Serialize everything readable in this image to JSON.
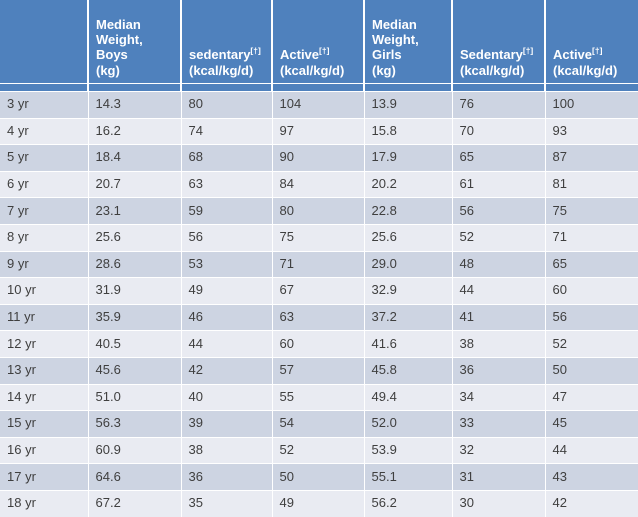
{
  "theme": {
    "header_bg": "#4F81BD",
    "row_band_dark": "#CDD4E2",
    "row_band_light": "#E9EBF2",
    "cell_border": "#FFFFFF",
    "header_text": "#FFFFFF",
    "body_text": "#3F3F3F"
  },
  "table": {
    "columns": [
      {
        "title": "",
        "sup": "",
        "unit": ""
      },
      {
        "title": "Median\nWeight, Boys",
        "sup": "",
        "unit": "(kg)"
      },
      {
        "title": "sedentary",
        "sup": "[†]",
        "unit": "(kcal/kg/d)"
      },
      {
        "title": "Active",
        "sup": "[†]",
        "unit": "(kcal/kg/d)"
      },
      {
        "title": "Median\nWeight, Girls",
        "sup": "",
        "unit": "(kg)"
      },
      {
        "title": "Sedentary",
        "sup": "[†]",
        "unit": "(kcal/kg/d)"
      },
      {
        "title": "Active",
        "sup": "[†]",
        "unit": "(kcal/kg/d)"
      }
    ],
    "rows": [
      {
        "age": "3 yr",
        "boys_weight": "14.3",
        "boys_sedentary": "80",
        "boys_active": "104",
        "girls_weight": "13.9",
        "girls_sedentary": "76",
        "girls_active": "100"
      },
      {
        "age": "4 yr",
        "boys_weight": "16.2",
        "boys_sedentary": "74",
        "boys_active": "97",
        "girls_weight": "15.8",
        "girls_sedentary": "70",
        "girls_active": "93"
      },
      {
        "age": "5 yr",
        "boys_weight": "18.4",
        "boys_sedentary": "68",
        "boys_active": "90",
        "girls_weight": "17.9",
        "girls_sedentary": "65",
        "girls_active": "87"
      },
      {
        "age": "6 yr",
        "boys_weight": "20.7",
        "boys_sedentary": "63",
        "boys_active": "84",
        "girls_weight": "20.2",
        "girls_sedentary": "61",
        "girls_active": "81"
      },
      {
        "age": "7 yr",
        "boys_weight": "23.1",
        "boys_sedentary": "59",
        "boys_active": "80",
        "girls_weight": "22.8",
        "girls_sedentary": "56",
        "girls_active": "75"
      },
      {
        "age": "8 yr",
        "boys_weight": "25.6",
        "boys_sedentary": "56",
        "boys_active": "75",
        "girls_weight": "25.6",
        "girls_sedentary": "52",
        "girls_active": "71"
      },
      {
        "age": "9 yr",
        "boys_weight": "28.6",
        "boys_sedentary": "53",
        "boys_active": "71",
        "girls_weight": "29.0",
        "girls_sedentary": "48",
        "girls_active": "65"
      },
      {
        "age": "10 yr",
        "boys_weight": "31.9",
        "boys_sedentary": "49",
        "boys_active": "67",
        "girls_weight": "32.9",
        "girls_sedentary": "44",
        "girls_active": "60"
      },
      {
        "age": "11 yr",
        "boys_weight": "35.9",
        "boys_sedentary": "46",
        "boys_active": "63",
        "girls_weight": "37.2",
        "girls_sedentary": "41",
        "girls_active": "56"
      },
      {
        "age": "12 yr",
        "boys_weight": "40.5",
        "boys_sedentary": "44",
        "boys_active": "60",
        "girls_weight": "41.6",
        "girls_sedentary": "38",
        "girls_active": "52"
      },
      {
        "age": "13 yr",
        "boys_weight": "45.6",
        "boys_sedentary": "42",
        "boys_active": "57",
        "girls_weight": "45.8",
        "girls_sedentary": "36",
        "girls_active": "50"
      },
      {
        "age": "14 yr",
        "boys_weight": "51.0",
        "boys_sedentary": "40",
        "boys_active": "55",
        "girls_weight": "49.4",
        "girls_sedentary": "34",
        "girls_active": "47"
      },
      {
        "age": "15 yr",
        "boys_weight": "56.3",
        "boys_sedentary": "39",
        "boys_active": "54",
        "girls_weight": "52.0",
        "girls_sedentary": "33",
        "girls_active": "45"
      },
      {
        "age": "16 yr",
        "boys_weight": "60.9",
        "boys_sedentary": "38",
        "boys_active": "52",
        "girls_weight": "53.9",
        "girls_sedentary": "32",
        "girls_active": "44"
      },
      {
        "age": "17 yr",
        "boys_weight": "64.6",
        "boys_sedentary": "36",
        "boys_active": "50",
        "girls_weight": "55.1",
        "girls_sedentary": "31",
        "girls_active": "43"
      },
      {
        "age": "18 yr",
        "boys_weight": "67.2",
        "boys_sedentary": "35",
        "boys_active": "49",
        "girls_weight": "56.2",
        "girls_sedentary": "30",
        "girls_active": "42"
      }
    ]
  }
}
